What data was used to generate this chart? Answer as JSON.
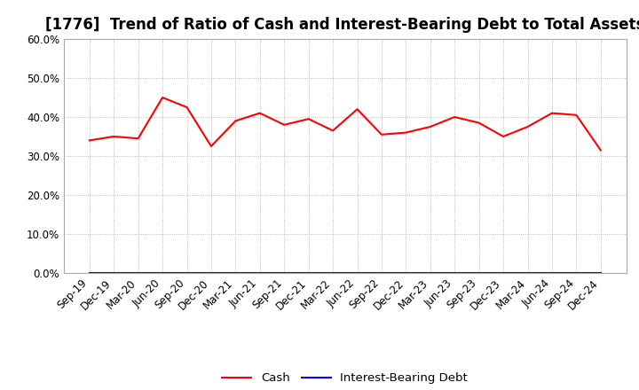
{
  "title": "[1776]  Trend of Ratio of Cash and Interest-Bearing Debt to Total Assets",
  "x_labels": [
    "Sep-19",
    "Dec-19",
    "Mar-20",
    "Jun-20",
    "Sep-20",
    "Dec-20",
    "Mar-21",
    "Jun-21",
    "Sep-21",
    "Dec-21",
    "Mar-22",
    "Jun-22",
    "Sep-22",
    "Dec-22",
    "Mar-23",
    "Jun-23",
    "Sep-23",
    "Dec-23",
    "Mar-24",
    "Jun-24",
    "Sep-24",
    "Dec-24"
  ],
  "cash_values": [
    34.0,
    35.0,
    34.5,
    45.0,
    42.5,
    32.5,
    39.0,
    41.0,
    38.0,
    39.5,
    36.5,
    42.0,
    35.5,
    36.0,
    37.5,
    40.0,
    38.5,
    35.0,
    37.5,
    41.0,
    40.5,
    31.5
  ],
  "interest_bearing_debt_values": [
    0,
    0,
    0,
    0,
    0,
    0,
    0,
    0,
    0,
    0,
    0,
    0,
    0,
    0,
    0,
    0,
    0,
    0,
    0,
    0,
    0,
    0
  ],
  "cash_color": "#FF0000",
  "interest_color": "#0000FF",
  "ylim": [
    0,
    60
  ],
  "yticks": [
    0,
    10,
    20,
    30,
    40,
    50,
    60
  ],
  "legend_cash": "Cash",
  "legend_interest": "Interest-Bearing Debt",
  "grid_color": "#aaaaaa",
  "background_color": "#ffffff",
  "title_fontsize": 12,
  "axis_fontsize": 8.5
}
